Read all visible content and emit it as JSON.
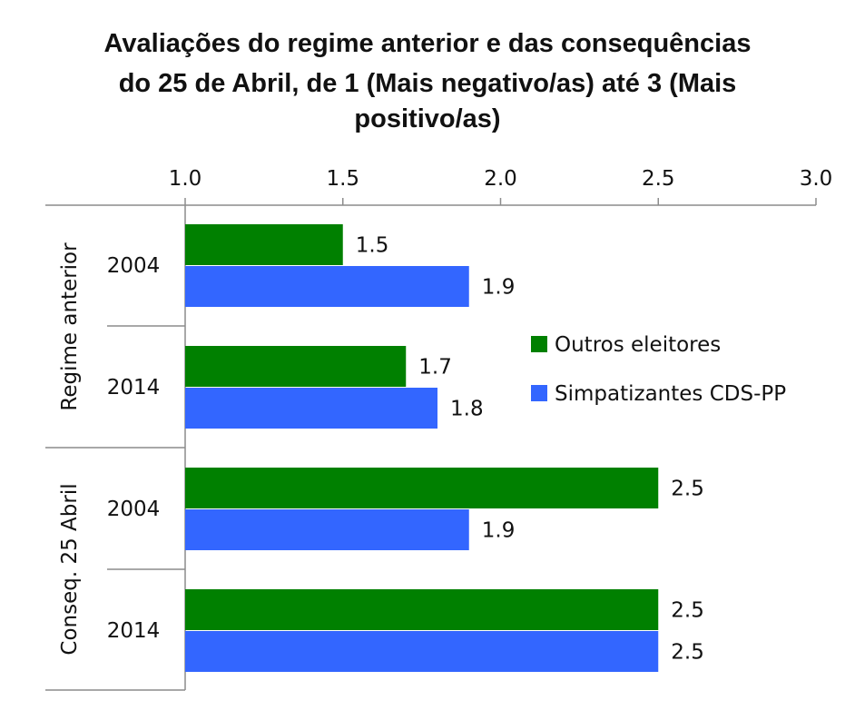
{
  "chart_data": {
    "type": "bar",
    "orientation": "horizontal",
    "title_lines": [
      "Avaliações do regime anterior e das consequências",
      "do 25 de Abril, de 1 (Mais negativo/as) até 3 (Mais",
      "positivo/as)"
    ],
    "xlim": [
      1.0,
      3.0
    ],
    "x_ticks": [
      "1.0",
      "1.5",
      "2.0",
      "2.5",
      "3.0"
    ],
    "tick_values": [
      1.0,
      1.5,
      2.0,
      2.5,
      3.0
    ],
    "groups": [
      {
        "label": "Regime anterior",
        "years": [
          "2004",
          "2014"
        ]
      },
      {
        "label": "Conseq. 25 Abril",
        "years": [
          "2004",
          "2014"
        ]
      }
    ],
    "series": [
      {
        "name": "Outros eleitores",
        "color": "#008000",
        "values": [
          1.5,
          1.7,
          2.5,
          2.5
        ],
        "labels": [
          "1.5",
          "1.7",
          "2.5",
          "2.5"
        ]
      },
      {
        "name": "Simpatizantes CDS-PP",
        "color": "#3366FF",
        "values": [
          1.9,
          1.8,
          1.9,
          2.5
        ],
        "labels": [
          "1.9",
          "1.8",
          "1.9",
          "2.5"
        ]
      }
    ],
    "legend_position": "right-middle",
    "grid": false
  }
}
